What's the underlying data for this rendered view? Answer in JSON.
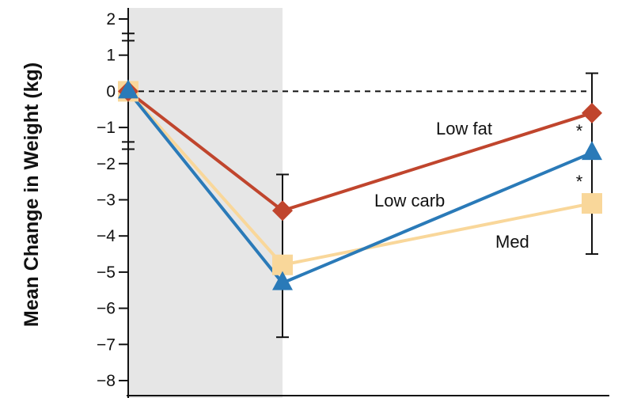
{
  "chart_data": {
    "type": "line",
    "title": "",
    "ylabel": "Mean Change in Weight (kg)",
    "xlabel": "",
    "ylim": [
      -8,
      2
    ],
    "yticks": [
      "2",
      "1",
      "0",
      "−1",
      "−2",
      "−3",
      "−4",
      "−5",
      "−6",
      "−7",
      "−8"
    ],
    "x_positions": [
      0,
      1,
      2
    ],
    "reference_line_y": 0,
    "shaded_region": [
      0,
      1
    ],
    "series": [
      {
        "name": "Low fat",
        "color": "#c0452d",
        "marker": "diamond",
        "values": [
          0,
          -3.3,
          -0.6
        ]
      },
      {
        "name": "Low carb",
        "color": "#2a7ab8",
        "marker": "triangle",
        "values": [
          0,
          -5.3,
          -1.7
        ]
      },
      {
        "name": "Med",
        "color": "#f9d79a",
        "marker": "square",
        "values": [
          0,
          -4.8,
          -3.1
        ]
      }
    ],
    "error_bars": [
      {
        "x": 0,
        "low": -1.6,
        "high": 1.6
      },
      {
        "x": 1,
        "low": -6.8,
        "high": -2.3
      },
      {
        "x": 2,
        "low": -4.5,
        "high": 0.5
      }
    ],
    "annotations": [
      {
        "text": "*",
        "series": "Low carb",
        "x": 2
      },
      {
        "text": "*",
        "series": "Med",
        "x": 2
      }
    ]
  }
}
